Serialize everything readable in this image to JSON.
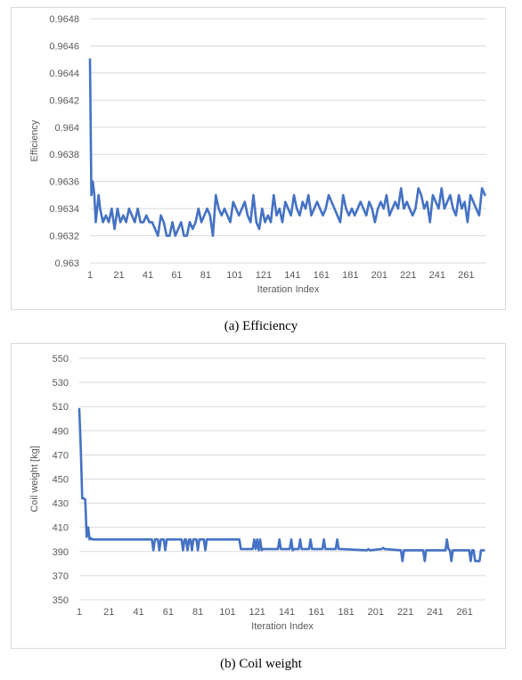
{
  "captions": {
    "a": "(a) Efficiency",
    "b": "(b) Coil weight"
  },
  "chart_data": [
    {
      "type": "line",
      "xlabel": "Iteration Index",
      "ylabel": "Efficiency",
      "ylim": [
        0.963,
        0.9648
      ],
      "yticks": [
        "0.963",
        "0.9632",
        "0.9634",
        "0.9636",
        "0.9638",
        "0.964",
        "0.9642",
        "0.9644",
        "0.9646",
        "0.9648"
      ],
      "xticks": [
        "1",
        "21",
        "41",
        "61",
        "81",
        "101",
        "121",
        "141",
        "161",
        "181",
        "201",
        "221",
        "241",
        "261"
      ],
      "xlim": [
        1,
        275
      ],
      "grid": true,
      "color": "#4472C4",
      "series": [
        {
          "x": [
            1,
            2,
            3,
            4,
            5,
            6,
            7,
            8,
            10,
            12,
            14,
            16,
            18,
            20,
            22,
            24,
            26,
            28,
            30,
            32,
            34,
            36,
            38,
            40,
            42,
            44,
            46,
            48,
            50,
            52,
            54,
            56,
            58,
            60,
            62,
            64,
            66,
            68,
            70,
            72,
            74,
            76,
            78,
            80,
            82,
            84,
            86,
            88,
            90,
            92,
            94,
            96,
            98,
            100,
            102,
            104,
            106,
            108,
            110,
            112,
            114,
            116,
            118,
            120,
            122,
            124,
            126,
            128,
            130,
            132,
            134,
            136,
            138,
            140,
            142,
            144,
            146,
            148,
            150,
            152,
            154,
            156,
            158,
            160,
            162,
            164,
            166,
            168,
            170,
            172,
            174,
            176,
            178,
            180,
            182,
            184,
            186,
            188,
            190,
            192,
            194,
            196,
            198,
            200,
            202,
            204,
            206,
            208,
            210,
            212,
            214,
            216,
            218,
            220,
            222,
            224,
            226,
            228,
            230,
            232,
            234,
            236,
            238,
            240,
            242,
            244,
            246,
            248,
            250,
            252,
            254,
            256,
            258,
            260,
            262,
            264,
            266,
            268,
            270,
            272,
            274
          ],
          "values": [
            0.9645,
            0.9635,
            0.9636,
            0.9635,
            0.9633,
            0.9634,
            0.9635,
            0.9634,
            0.9633,
            0.96335,
            0.9633,
            0.9634,
            0.96325,
            0.9634,
            0.9633,
            0.96335,
            0.9633,
            0.9634,
            0.96335,
            0.9633,
            0.9634,
            0.9633,
            0.9633,
            0.96335,
            0.9633,
            0.9633,
            0.96325,
            0.9632,
            0.96335,
            0.9633,
            0.9632,
            0.9632,
            0.9633,
            0.9632,
            0.96325,
            0.9633,
            0.9632,
            0.9632,
            0.9633,
            0.96325,
            0.9633,
            0.9634,
            0.9633,
            0.96335,
            0.9634,
            0.96335,
            0.9632,
            0.9635,
            0.9634,
            0.96335,
            0.9634,
            0.96335,
            0.9633,
            0.96345,
            0.9634,
            0.96335,
            0.9634,
            0.96345,
            0.96335,
            0.9633,
            0.9635,
            0.9633,
            0.96325,
            0.9634,
            0.9633,
            0.96335,
            0.9633,
            0.9635,
            0.96335,
            0.9634,
            0.9633,
            0.96345,
            0.9634,
            0.96335,
            0.9635,
            0.9634,
            0.96335,
            0.96345,
            0.9634,
            0.9635,
            0.96335,
            0.9634,
            0.96345,
            0.9634,
            0.96335,
            0.9634,
            0.9635,
            0.96345,
            0.9634,
            0.96335,
            0.9633,
            0.9635,
            0.9634,
            0.96335,
            0.9634,
            0.96335,
            0.9634,
            0.96345,
            0.9634,
            0.96335,
            0.96345,
            0.9634,
            0.9633,
            0.9634,
            0.96345,
            0.9634,
            0.9635,
            0.96335,
            0.9634,
            0.96345,
            0.9634,
            0.96355,
            0.9634,
            0.96345,
            0.9634,
            0.96335,
            0.9634,
            0.96355,
            0.9635,
            0.9634,
            0.96345,
            0.9633,
            0.9635,
            0.96345,
            0.9634,
            0.96355,
            0.9634,
            0.96345,
            0.9635,
            0.9634,
            0.96335,
            0.9635,
            0.9634,
            0.96345,
            0.9633,
            0.9635,
            0.96345,
            0.9634,
            0.96335,
            0.96355,
            0.9635
          ]
        }
      ]
    },
    {
      "type": "line",
      "xlabel": "Iteration Index",
      "ylabel": "Coil weight [kg]",
      "ylim": [
        350,
        550
      ],
      "yticks": [
        "350",
        "370",
        "390",
        "410",
        "430",
        "450",
        "470",
        "490",
        "510",
        "530",
        "550"
      ],
      "xticks": [
        "1",
        "21",
        "41",
        "61",
        "81",
        "101",
        "121",
        "141",
        "161",
        "181",
        "201",
        "221",
        "241",
        "261"
      ],
      "xlim": [
        1,
        275
      ],
      "grid": true,
      "color": "#4472C4",
      "series": [
        {
          "x": [
            1,
            2,
            3,
            4,
            5,
            6,
            7,
            8,
            9,
            10,
            50,
            51,
            52,
            53,
            54,
            55,
            56,
            57,
            58,
            59,
            60,
            61,
            62,
            63,
            70,
            71,
            72,
            73,
            74,
            75,
            76,
            77,
            78,
            79,
            80,
            81,
            82,
            83,
            84,
            85,
            86,
            87,
            88,
            89,
            90,
            91,
            109,
            110,
            111,
            118,
            119,
            120,
            121,
            122,
            123,
            124,
            125,
            126,
            127,
            128,
            135,
            136,
            137,
            138,
            143,
            144,
            145,
            146,
            149,
            150,
            151,
            152,
            156,
            157,
            158,
            159,
            165,
            166,
            167,
            168,
            174,
            175,
            176,
            177,
            195,
            196,
            197,
            205,
            206,
            207,
            218,
            219,
            220,
            221,
            233,
            234,
            235,
            248,
            249,
            250,
            251,
            252,
            253,
            254,
            263,
            264,
            265,
            266,
            267,
            268,
            269,
            270,
            271,
            272,
            273,
            274
          ],
          "values": [
            508,
            475,
            434,
            434,
            433,
            402,
            410,
            400,
            401,
            400,
            400,
            391,
            400,
            400,
            400,
            391,
            400,
            400,
            400,
            391,
            400,
            400,
            400,
            400,
            400,
            391,
            400,
            400,
            391,
            400,
            400,
            391,
            400,
            400,
            400,
            391,
            400,
            400,
            400,
            400,
            391,
            400,
            400,
            400,
            400,
            400,
            400,
            392,
            392,
            392,
            400,
            392,
            400,
            391,
            400,
            391,
            392,
            392,
            392,
            392,
            392,
            400,
            392,
            392,
            392,
            400,
            391,
            392,
            392,
            400,
            392,
            392,
            392,
            400,
            392,
            392,
            392,
            400,
            392,
            392,
            392,
            400,
            392,
            392,
            391,
            392,
            391,
            392,
            393,
            392,
            391,
            382,
            391,
            391,
            391,
            382,
            391,
            391,
            400,
            392,
            391,
            382,
            391,
            391,
            391,
            391,
            382,
            391,
            391,
            382,
            382,
            382,
            382,
            391,
            391,
            391
          ]
        }
      ]
    }
  ]
}
